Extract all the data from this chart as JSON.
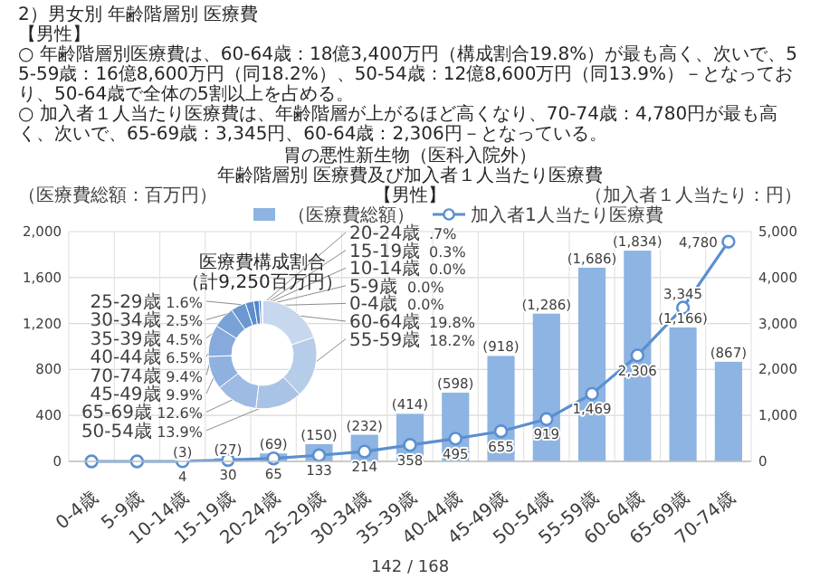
{
  "chart_data": [
    {
      "type": "bar",
      "title": "胃の悪性新生物（医科入院外）",
      "subtitle": "年齢階層別 医療費及び加入者１人当たり医療費",
      "annotations": [
        "2）男女別 年齢階層別 医療費",
        "【男性】",
        "○ 年齢階層別医療費は、60-64歳：18億3,400万円（構成割合19.8%）が最も高く、次いで、55-59歳：16億8,600万円（同18.2%）、50-54歳：12億8,600万円（同13.9%）－となっており、50-64歳で全体の5割以上を占める。",
        "○ 加入者１人当たり医療費は、年齢階層が上がるほど高くなり、70-74歳：4,780円が最も高く、次いで、65-69歳：3,345円、60-64歳：2,306円－となっている。",
        "【男性】",
        "142 / 168"
      ],
      "ylabel": "（医療費総額：百万円）",
      "y2label": "（加入者１人当たり：円）",
      "categories": [
        "0-4歳",
        "5-9歳",
        "10-14歳",
        "15-19歳",
        "20-24歳",
        "25-29歳",
        "30-34歳",
        "35-39歳",
        "40-44歳",
        "45-49歳",
        "50-54歳",
        "55-59歳",
        "60-64歳",
        "65-69歳",
        "70-74歳"
      ],
      "series": [
        {
          "type": "bar",
          "name": "（医療費総額）",
          "color": "#8db4e2",
          "values": [
            null,
            null,
            3,
            27,
            69,
            150,
            232,
            414,
            598,
            918,
            1286,
            1686,
            1834,
            1166,
            867
          ],
          "value_labels": [
            null,
            null,
            "(3)",
            "(27)",
            "(69)",
            "(150)",
            "(232)",
            "(414)",
            "(598)",
            "(918)",
            "(1,286)",
            "(1,686)",
            "(1,834)",
            "(1,166)",
            "(867)"
          ]
        },
        {
          "type": "line",
          "name": "加入者1人当たり医療費",
          "color": "#5b8fd0",
          "axis": "y2",
          "marker": "circle",
          "values": [
            0,
            0,
            4,
            30,
            65,
            133,
            214,
            358,
            495,
            655,
            919,
            1469,
            2306,
            3345,
            4780
          ],
          "value_labels": [
            null,
            null,
            "4",
            "30",
            "65",
            "133",
            "214",
            "358",
            "495",
            "655",
            "919",
            "1,469",
            "2,306",
            "3,345",
            "4,780"
          ]
        }
      ],
      "ylim": [
        0,
        2000
      ],
      "yticks": [
        0,
        400,
        800,
        {
          "value": 1200,
          "label": "1,200"
        },
        {
          "value": 1600,
          "label": "1,600"
        },
        {
          "value": 2000,
          "label": "2,000"
        }
      ],
      "y2lim": [
        0,
        5000
      ],
      "y2ticks": [
        0,
        {
          "value": 1000,
          "label": "1,000"
        },
        {
          "value": 2000,
          "label": "2,000"
        },
        {
          "value": 3000,
          "label": "3,000"
        },
        {
          "value": 4000,
          "label": "4,000"
        },
        {
          "value": 5000,
          "label": "5,000"
        }
      ],
      "grid": true,
      "legend": "top"
    },
    {
      "type": "donut",
      "title": "医療費構成割合（計9,250百万円）",
      "categories": [
        "60-64歳",
        "55-59歳",
        "50-54歳",
        "65-69歳",
        "45-49歳",
        "70-74歳",
        "40-44歳",
        "35-39歳",
        "30-34歳",
        "25-29歳",
        "20-24歳",
        "15-19歳",
        "10-14歳",
        "5-9歳",
        "0-4歳"
      ],
      "values": [
        19.8,
        18.2,
        13.9,
        12.6,
        9.9,
        9.4,
        6.5,
        4.5,
        2.5,
        1.6,
        0.7,
        0.3,
        0.0,
        0.0,
        0.0
      ],
      "value_labels": [
        "19.8%",
        "18.2%",
        "13.9%",
        "12.6%",
        "9.9%",
        "9.4%",
        "6.5%",
        "4.5%",
        "2.5%",
        "1.6%",
        ".7%",
        "0.3%",
        "0.0%",
        "0.0%",
        "0.0%"
      ],
      "colors": [
        "#c6d7ee",
        "#b6cdea",
        "#a8c3e6",
        "#9dbbe3",
        "#8fb1df",
        "#85aadb",
        "#7aa2d7",
        "#6c98d2",
        "#5e8ecd",
        "#5086c9",
        "#447dc4",
        "#3b76c0",
        "#3672be",
        "#3370bd",
        "#306ebc"
      ]
    }
  ]
}
